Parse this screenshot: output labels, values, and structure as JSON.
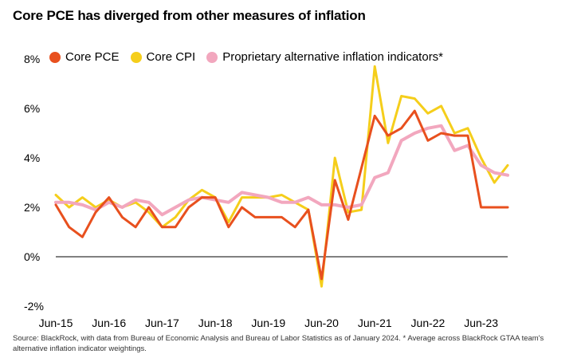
{
  "title": "Core PCE has diverged from other measures of inflation",
  "source": "Source: BlackRock, with data from Bureau of Economic Analysis and Bureau of Labor Statistics as of January 2024. * Average across BlackRock GTAA team's alternative inflation indicator weightings.",
  "chart_data": {
    "type": "line",
    "title": "Core PCE has diverged from other measures of inflation",
    "xlabel": "",
    "ylabel": "",
    "ylim": [
      -2,
      8
    ],
    "y_ticks": [
      8,
      6,
      4,
      2,
      0,
      -2
    ],
    "y_tick_labels": [
      "8%",
      "6%",
      "4%",
      "2%",
      "0%",
      "-2%"
    ],
    "x_tick_labels": [
      "Jun-15",
      "Jun-16",
      "Jun-17",
      "Jun-18",
      "Jun-19",
      "Jun-20",
      "Jun-21",
      "Jun-22",
      "Jun-23"
    ],
    "legend_position": "top-left",
    "grid": false,
    "zero_line": true,
    "series": [
      {
        "name": "Core PCE",
        "color": "#E8501E",
        "x": [
          "Jun-15",
          "Sep-15",
          "Dec-15",
          "Mar-16",
          "Jun-16",
          "Sep-16",
          "Dec-16",
          "Mar-17",
          "Jun-17",
          "Sep-17",
          "Dec-17",
          "Mar-18",
          "Jun-18",
          "Sep-18",
          "Dec-18",
          "Mar-19",
          "Jun-19",
          "Sep-19",
          "Dec-19",
          "Mar-20",
          "Jun-20",
          "Sep-20",
          "Dec-20",
          "Mar-21",
          "Jun-21",
          "Sep-21",
          "Dec-21",
          "Mar-22",
          "Jun-22",
          "Sep-22",
          "Dec-22",
          "Mar-23",
          "Jun-23",
          "Sep-23",
          "Dec-23"
        ],
        "values": [
          2.1,
          1.2,
          0.8,
          1.8,
          2.4,
          1.6,
          1.2,
          2.0,
          1.2,
          1.2,
          2.0,
          2.4,
          2.4,
          1.2,
          2.0,
          1.6,
          1.6,
          1.6,
          1.2,
          1.9,
          -0.9,
          3.1,
          1.5,
          3.6,
          5.7,
          4.9,
          5.2,
          5.9,
          4.7,
          5.0,
          4.9,
          4.9,
          2.0,
          2.0,
          2.0
        ]
      },
      {
        "name": "Core CPI",
        "color": "#F5CE1B",
        "x": [
          "Jun-15",
          "Sep-15",
          "Dec-15",
          "Mar-16",
          "Jun-16",
          "Sep-16",
          "Dec-16",
          "Mar-17",
          "Jun-17",
          "Sep-17",
          "Dec-17",
          "Mar-18",
          "Jun-18",
          "Sep-18",
          "Dec-18",
          "Mar-19",
          "Jun-19",
          "Sep-19",
          "Dec-19",
          "Mar-20",
          "Jun-20",
          "Sep-20",
          "Dec-20",
          "Mar-21",
          "Jun-21",
          "Sep-21",
          "Dec-21",
          "Mar-22",
          "Jun-22",
          "Sep-22",
          "Dec-22",
          "Mar-23",
          "Jun-23",
          "Sep-23",
          "Dec-23"
        ],
        "values": [
          2.5,
          2.0,
          2.4,
          2.0,
          2.3,
          2.0,
          2.2,
          1.8,
          1.2,
          1.6,
          2.3,
          2.7,
          2.4,
          1.4,
          2.4,
          2.4,
          2.4,
          2.5,
          2.2,
          1.9,
          -1.2,
          4.0,
          1.8,
          1.9,
          7.7,
          4.6,
          6.5,
          6.4,
          5.8,
          6.1,
          5.0,
          5.2,
          4.0,
          3.0,
          3.7
        ]
      },
      {
        "name": "Proprietary alternative inflation indicators*",
        "color": "#F2A7BE",
        "x": [
          "Jun-15",
          "Sep-15",
          "Dec-15",
          "Mar-16",
          "Jun-16",
          "Sep-16",
          "Dec-16",
          "Mar-17",
          "Jun-17",
          "Sep-17",
          "Dec-17",
          "Mar-18",
          "Jun-18",
          "Sep-18",
          "Dec-18",
          "Mar-19",
          "Jun-19",
          "Sep-19",
          "Dec-19",
          "Mar-20",
          "Jun-20",
          "Sep-20",
          "Dec-20",
          "Mar-21",
          "Jun-21",
          "Sep-21",
          "Dec-21",
          "Mar-22",
          "Jun-22",
          "Sep-22",
          "Dec-22",
          "Mar-23",
          "Jun-23",
          "Sep-23",
          "Dec-23"
        ],
        "values": [
          2.2,
          2.2,
          2.1,
          1.9,
          2.2,
          2.0,
          2.3,
          2.2,
          1.7,
          2.0,
          2.3,
          2.4,
          2.3,
          2.2,
          2.6,
          2.5,
          2.4,
          2.2,
          2.2,
          2.4,
          2.1,
          2.1,
          2.0,
          2.1,
          3.2,
          3.4,
          4.7,
          5.0,
          5.2,
          5.3,
          4.3,
          4.5,
          3.7,
          3.4,
          3.3
        ]
      }
    ]
  }
}
